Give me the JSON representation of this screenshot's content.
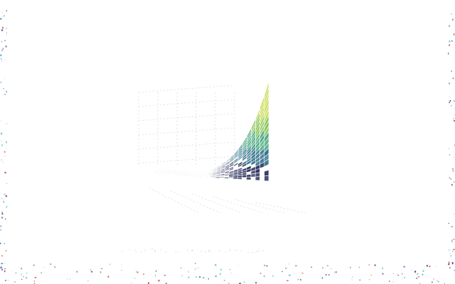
{
  "window": {
    "title": ""
  },
  "colors": {
    "background": "#ffffff",
    "surface_dark": "#2a2f5a",
    "surface_mid": "#2f6f8a",
    "surface_light": "#7fbf4a",
    "surface_tip": "#c7d94a",
    "grid": "#d9dde6",
    "speckle_blue": "#3a4a8c",
    "speckle_red": "#c0392b",
    "speckle_cyan": "#2fb7c9"
  },
  "chart_data": {
    "type": "surface3d",
    "title": "",
    "xlabel": "",
    "ylabel": "",
    "zlabel": "",
    "grid": true,
    "legend": "none",
    "colormap": [
      "#2a2f5a",
      "#2f6f8a",
      "#3fa37a",
      "#7fbf4a",
      "#c7d94a"
    ]
  }
}
